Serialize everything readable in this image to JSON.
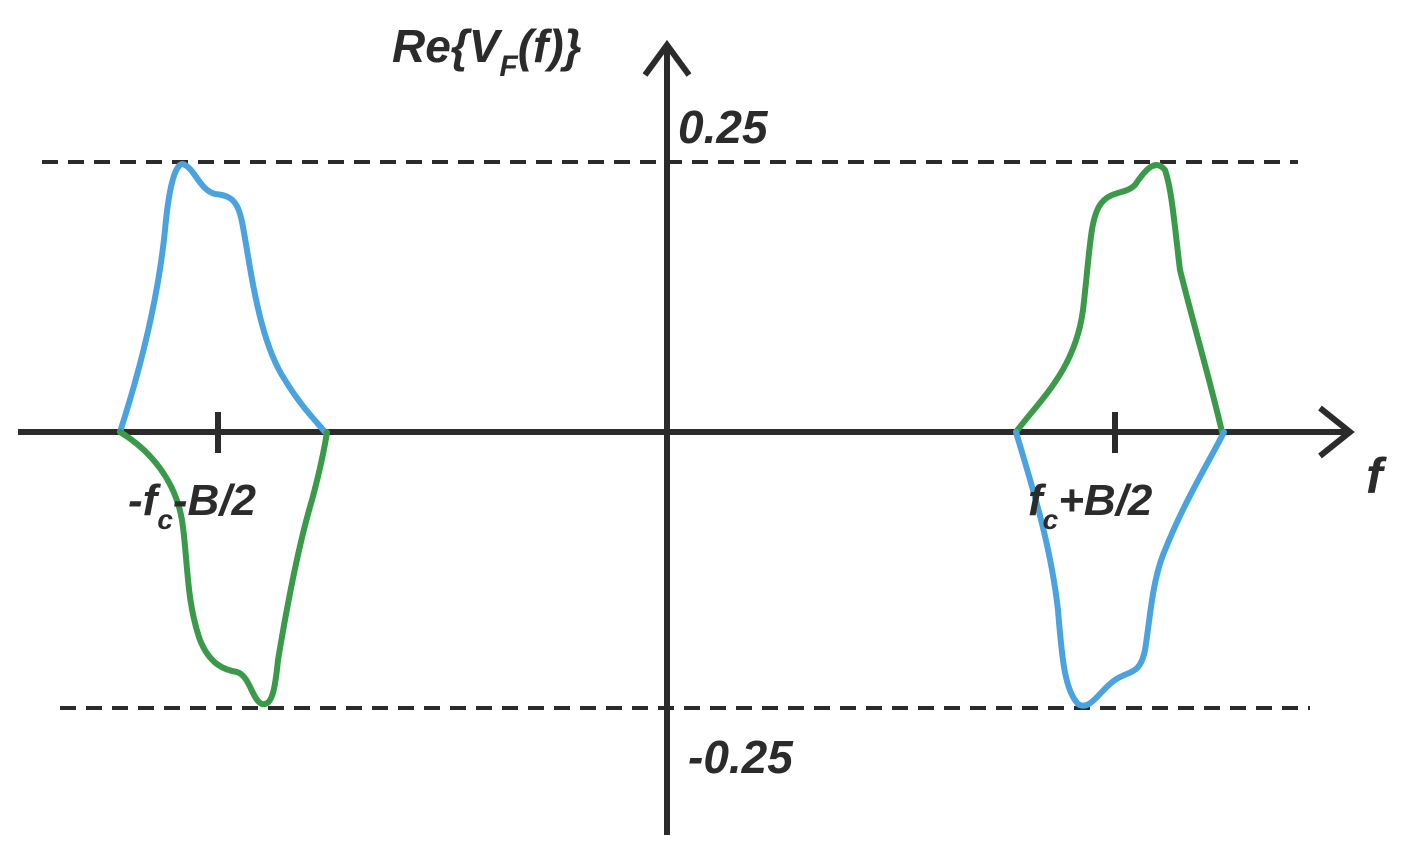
{
  "colors": {
    "axis": "#2b2b2b",
    "blue_curve": "#4aa3df",
    "green_curve": "#3a9a4a"
  },
  "labels": {
    "y_axis": {
      "main": "Re{V",
      "sub": "F",
      "tail": "(f)}"
    },
    "x_axis": "f",
    "y_top": "0.25",
    "y_bottom": "-0.25",
    "tick_left": {
      "pre": "-f",
      "sub": "c",
      "post": "-B/2"
    },
    "tick_right": {
      "pre": "f",
      "sub": "c",
      "post": "+B/2"
    }
  },
  "reference_levels": [
    0.25,
    -0.25
  ]
}
